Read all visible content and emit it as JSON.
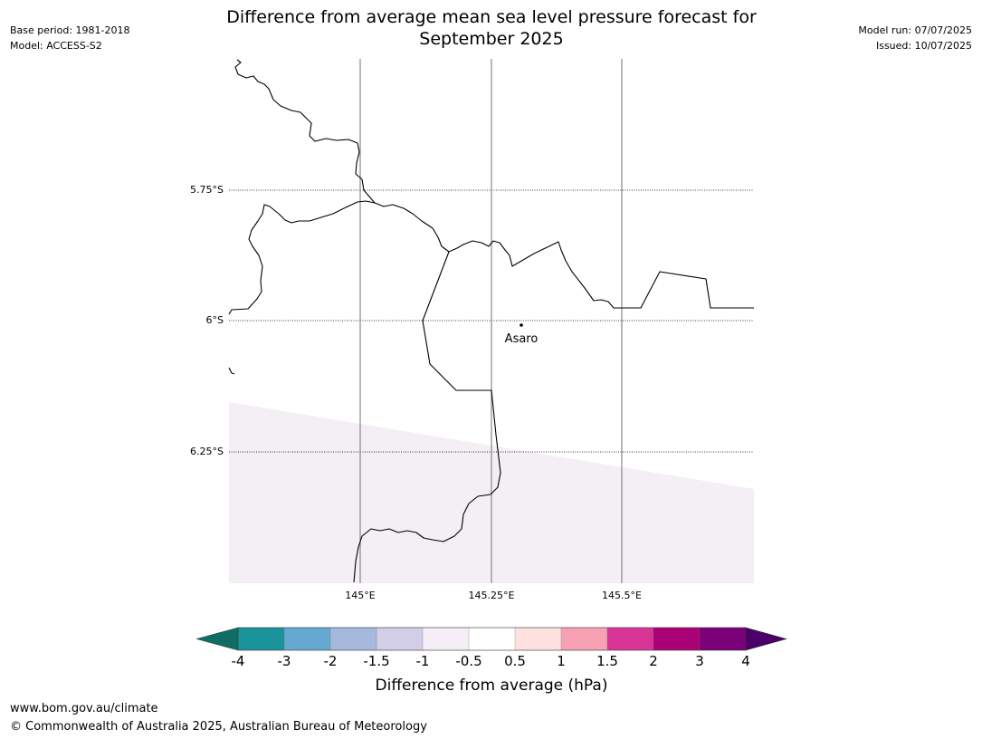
{
  "header": {
    "base_period": "Base period: 1981-2018",
    "model": "Model: ACCESS-S2",
    "model_run": "Model run: 07/07/2025",
    "issued": "Issued: 10/07/2025",
    "title_line1": "Difference from average mean sea level pressure forecast for",
    "title_line2": "September 2025"
  },
  "map": {
    "lat_labels": [
      "5.75°S",
      "6°S",
      "6.25°S"
    ],
    "lon_labels": [
      "145°E",
      "145.25°E",
      "145.5°E"
    ],
    "place_label": "Asaro",
    "anomaly_fill_color": "#f4eef5",
    "coastline_color": "#000000"
  },
  "colorbar": {
    "tick_labels": [
      "-4",
      "-3",
      "-2",
      "-1.5",
      "-1",
      "-0.5",
      "0.5",
      "1",
      "1.5",
      "2",
      "3",
      "4"
    ],
    "colors": [
      "#0e6e64",
      "#1a9299",
      "#65a9d0",
      "#a4b9db",
      "#d2cee5",
      "#f5eef7",
      "#ffffff",
      "#fde0e0",
      "#f7a1b5",
      "#d93596",
      "#ab0177",
      "#7a0177",
      "#4a0068"
    ],
    "label": "Difference from average (hPa)"
  },
  "footer": {
    "url": "www.bom.gov.au/climate",
    "copyright": "© Commonwealth of Australia 2025, Australian Bureau of Meteorology"
  }
}
